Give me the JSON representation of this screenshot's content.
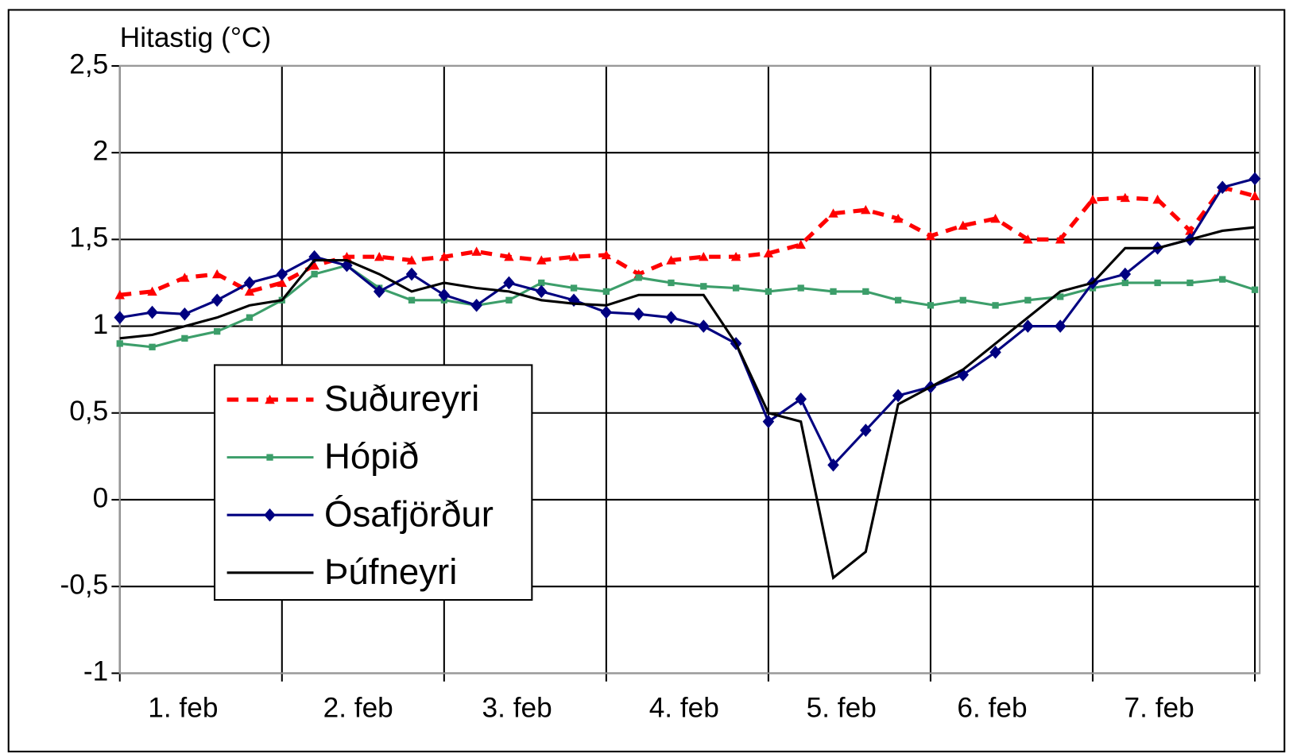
{
  "chart_data": {
    "type": "line",
    "y_axis_label": "Hitastig (°C)",
    "x": [
      0,
      0.2,
      0.4,
      0.6,
      0.8,
      1.0,
      1.2,
      1.4,
      1.6,
      1.8,
      2.0,
      2.2,
      2.4,
      2.6,
      2.8,
      3.0,
      3.2,
      3.4,
      3.6,
      3.8,
      4.0,
      4.2,
      4.4,
      4.6,
      4.8,
      5.0,
      5.2,
      5.4,
      5.6,
      5.8,
      6.0,
      6.2,
      6.4,
      6.6,
      6.8,
      7.0
    ],
    "xlim": [
      0,
      7.03
    ],
    "xgrid": [
      0,
      1,
      2,
      3,
      4,
      5,
      6,
      7
    ],
    "xticks": [
      {
        "value": 0.39,
        "label": "1. feb"
      },
      {
        "value": 1.47,
        "label": "2. feb"
      },
      {
        "value": 2.45,
        "label": "3. feb"
      },
      {
        "value": 3.48,
        "label": "4. feb"
      },
      {
        "value": 4.45,
        "label": "5. feb"
      },
      {
        "value": 5.38,
        "label": "6. feb"
      },
      {
        "value": 6.41,
        "label": "7. feb"
      }
    ],
    "ylim": [
      -1,
      2.5
    ],
    "yticks": [
      {
        "value": 2.5,
        "label": "2,5"
      },
      2,
      {
        "value": 1.5,
        "label": "1,5"
      },
      1,
      {
        "value": 0.5,
        "label": "0,5"
      },
      0,
      {
        "value": -0.5,
        "label": "-0,5"
      },
      -1
    ],
    "grid": true,
    "series": [
      {
        "name": "Suðureyri",
        "color": "#ff0000",
        "dash": true,
        "marker": "triangle",
        "values": [
          1.18,
          1.2,
          1.28,
          1.3,
          1.2,
          1.25,
          1.35,
          1.4,
          1.4,
          1.38,
          1.4,
          1.43,
          1.4,
          1.38,
          1.4,
          1.41,
          1.3,
          1.38,
          1.4,
          1.4,
          1.42,
          1.47,
          1.65,
          1.67,
          1.62,
          1.52,
          1.58,
          1.62,
          1.5,
          1.5,
          1.73,
          1.74,
          1.73,
          1.55,
          1.8,
          1.75
        ]
      },
      {
        "name": "Hópið",
        "color": "#3c9e6a",
        "dash": false,
        "marker": "square",
        "values": [
          0.9,
          0.88,
          0.93,
          0.97,
          1.05,
          1.15,
          1.3,
          1.35,
          1.22,
          1.15,
          1.15,
          1.12,
          1.15,
          1.25,
          1.22,
          1.2,
          1.28,
          1.25,
          1.23,
          1.22,
          1.2,
          1.22,
          1.2,
          1.2,
          1.15,
          1.12,
          1.15,
          1.12,
          1.15,
          1.17,
          1.22,
          1.25,
          1.25,
          1.25,
          1.27,
          1.21
        ]
      },
      {
        "name": "Ósafjörður",
        "color": "#000080",
        "dash": false,
        "marker": "diamond",
        "values": [
          1.05,
          1.08,
          1.07,
          1.15,
          1.25,
          1.3,
          1.4,
          1.35,
          1.2,
          1.3,
          1.18,
          1.12,
          1.25,
          1.2,
          1.15,
          1.08,
          1.07,
          1.05,
          1.0,
          0.9,
          0.45,
          0.58,
          0.2,
          0.4,
          0.6,
          0.65,
          0.72,
          0.85,
          1.0,
          1.0,
          1.25,
          1.3,
          1.45,
          1.5,
          1.8,
          1.85
        ]
      },
      {
        "name": "Þúfneyri",
        "color": "#000000",
        "dash": false,
        "marker": "none",
        "values": [
          0.93,
          0.95,
          1.0,
          1.05,
          1.12,
          1.15,
          1.38,
          1.38,
          1.3,
          1.2,
          1.25,
          1.22,
          1.2,
          1.15,
          1.13,
          1.12,
          1.18,
          1.18,
          1.18,
          0.9,
          0.5,
          0.45,
          -0.45,
          -0.3,
          0.55,
          0.65,
          0.75,
          0.9,
          1.05,
          1.2,
          1.25,
          1.45,
          1.45,
          1.5,
          1.55,
          1.57
        ]
      }
    ],
    "legend": "lower-left"
  }
}
